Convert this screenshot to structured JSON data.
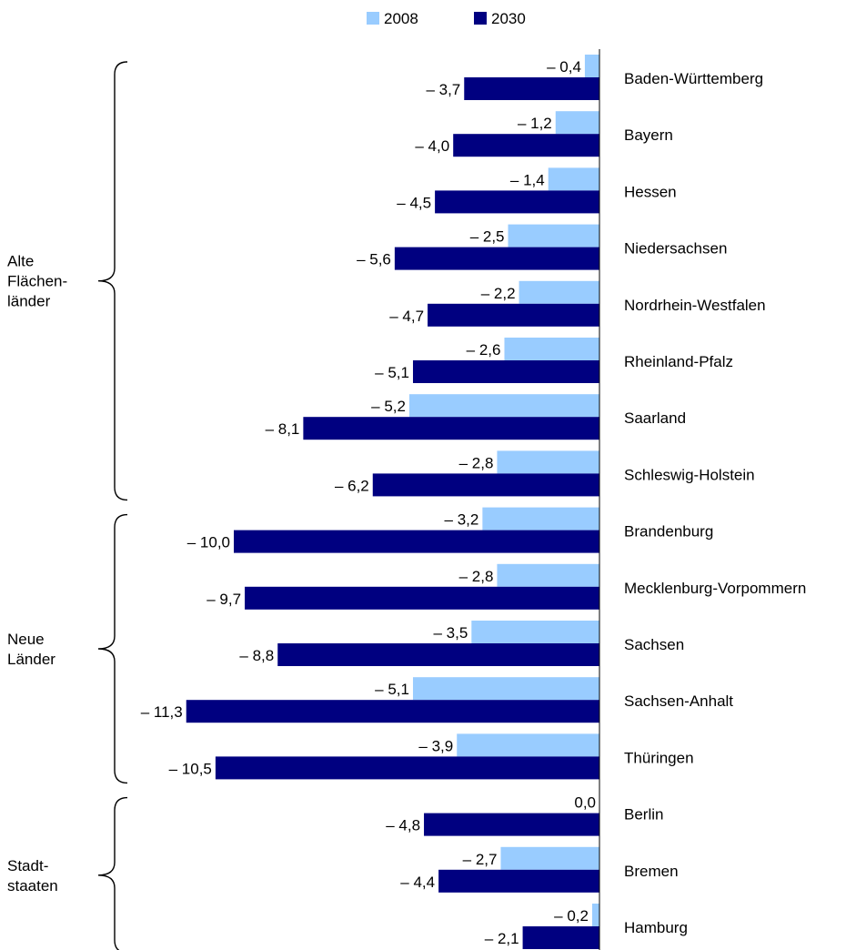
{
  "chart_data": {
    "type": "bar",
    "orientation": "horizontal",
    "title": "",
    "categories": [
      "Baden-Württemberg",
      "Bayern",
      "Hessen",
      "Niedersachsen",
      "Nordrhein-Westfalen",
      "Rheinland-Pfalz",
      "Saarland",
      "Schleswig-Holstein",
      "Brandenburg",
      "Mecklenburg-Vorpommern",
      "Sachsen",
      "Sachsen-Anhalt",
      "Thüringen",
      "Berlin",
      "Bremen",
      "Hamburg"
    ],
    "series": [
      {
        "name": "2008",
        "color": "#99ccff",
        "values": [
          -0.4,
          -1.2,
          -1.4,
          -2.5,
          -2.2,
          -2.6,
          -5.2,
          -2.8,
          -3.2,
          -2.8,
          -3.5,
          -5.1,
          -3.9,
          0.0,
          -2.7,
          -0.2
        ],
        "labels": [
          "– 0,4",
          "– 1,2",
          "– 1,4",
          "– 2,5",
          "– 2,2",
          "– 2,6",
          "– 5,2",
          "– 2,8",
          "– 3,2",
          "– 2,8",
          "– 3,5",
          "– 5,1",
          "– 3,9",
          "0,0",
          "– 2,7",
          "– 0,2"
        ]
      },
      {
        "name": "2030",
        "color": "#000080",
        "values": [
          -3.7,
          -4.0,
          -4.5,
          -5.6,
          -4.7,
          -5.1,
          -8.1,
          -6.2,
          -10.0,
          -9.7,
          -8.8,
          -11.3,
          -10.5,
          -4.8,
          -4.4,
          -2.1
        ],
        "labels": [
          "– 3,7",
          "– 4,0",
          "– 4,5",
          "– 5,6",
          "– 4,7",
          "– 5,1",
          "– 8,1",
          "– 6,2",
          "– 10,0",
          "– 9,7",
          "– 8,8",
          "– 11,3",
          "– 10,5",
          "– 4,8",
          "– 4,4",
          "– 2,1"
        ]
      }
    ],
    "groups": [
      {
        "lines": [
          "Alte",
          "Flächen-",
          "länder"
        ],
        "from": 0,
        "to": 7
      },
      {
        "lines": [
          "Neue",
          "Länder"
        ],
        "from": 8,
        "to": 12
      },
      {
        "lines": [
          "Stadt-",
          "staaten"
        ],
        "from": 13,
        "to": 15
      }
    ],
    "legend": {
      "position": "top"
    },
    "grid": false
  }
}
